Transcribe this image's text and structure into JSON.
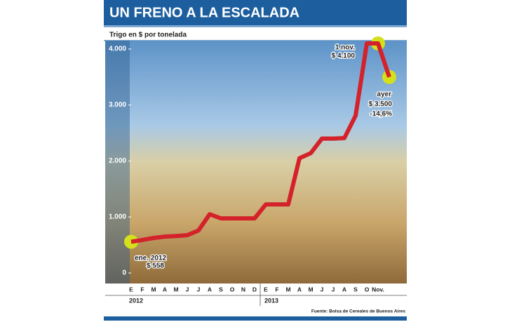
{
  "chart_data": {
    "type": "line",
    "title": "UN FRENO A LA ESCALADA",
    "subtitle": "Trigo en $ por tonelada",
    "categories": [
      "E",
      "F",
      "M",
      "A",
      "M",
      "J",
      "J",
      "A",
      "S",
      "O",
      "N",
      "D",
      "E",
      "F",
      "M",
      "A",
      "M",
      "J",
      "J",
      "A",
      "S",
      "O",
      "Nov.",
      null
    ],
    "years": [
      "2012",
      "2013"
    ],
    "series": [
      {
        "name": "Trigo",
        "color": "#d3222a",
        "values": [
          558,
          590,
          625,
          650,
          660,
          675,
          760,
          1050,
          975,
          975,
          975,
          975,
          1225,
          1225,
          1225,
          2050,
          2140,
          2400,
          2400,
          2410,
          2810,
          4100,
          4100,
          3500
        ]
      }
    ],
    "highlight_color": "#d4e01c",
    "ylim": [
      0,
      4150
    ],
    "yticks": [
      0,
      {
        "value": 1000,
        "label": "1.000"
      },
      {
        "value": 2000,
        "label": "2.000"
      },
      {
        "value": 3000,
        "label": "3.000"
      },
      {
        "value": 4000,
        "label": "4.000"
      }
    ],
    "annotations": [
      {
        "lines": [
          "ene. 2012",
          "$ 558"
        ]
      },
      {
        "lines": [
          "1 nov.",
          "$ 4.100"
        ]
      },
      {
        "lines": [
          "ayer",
          "$ 3.500",
          "-14,6%"
        ]
      }
    ],
    "source": "Fuente: Bolsa de Cereales de Buenos Aires"
  }
}
